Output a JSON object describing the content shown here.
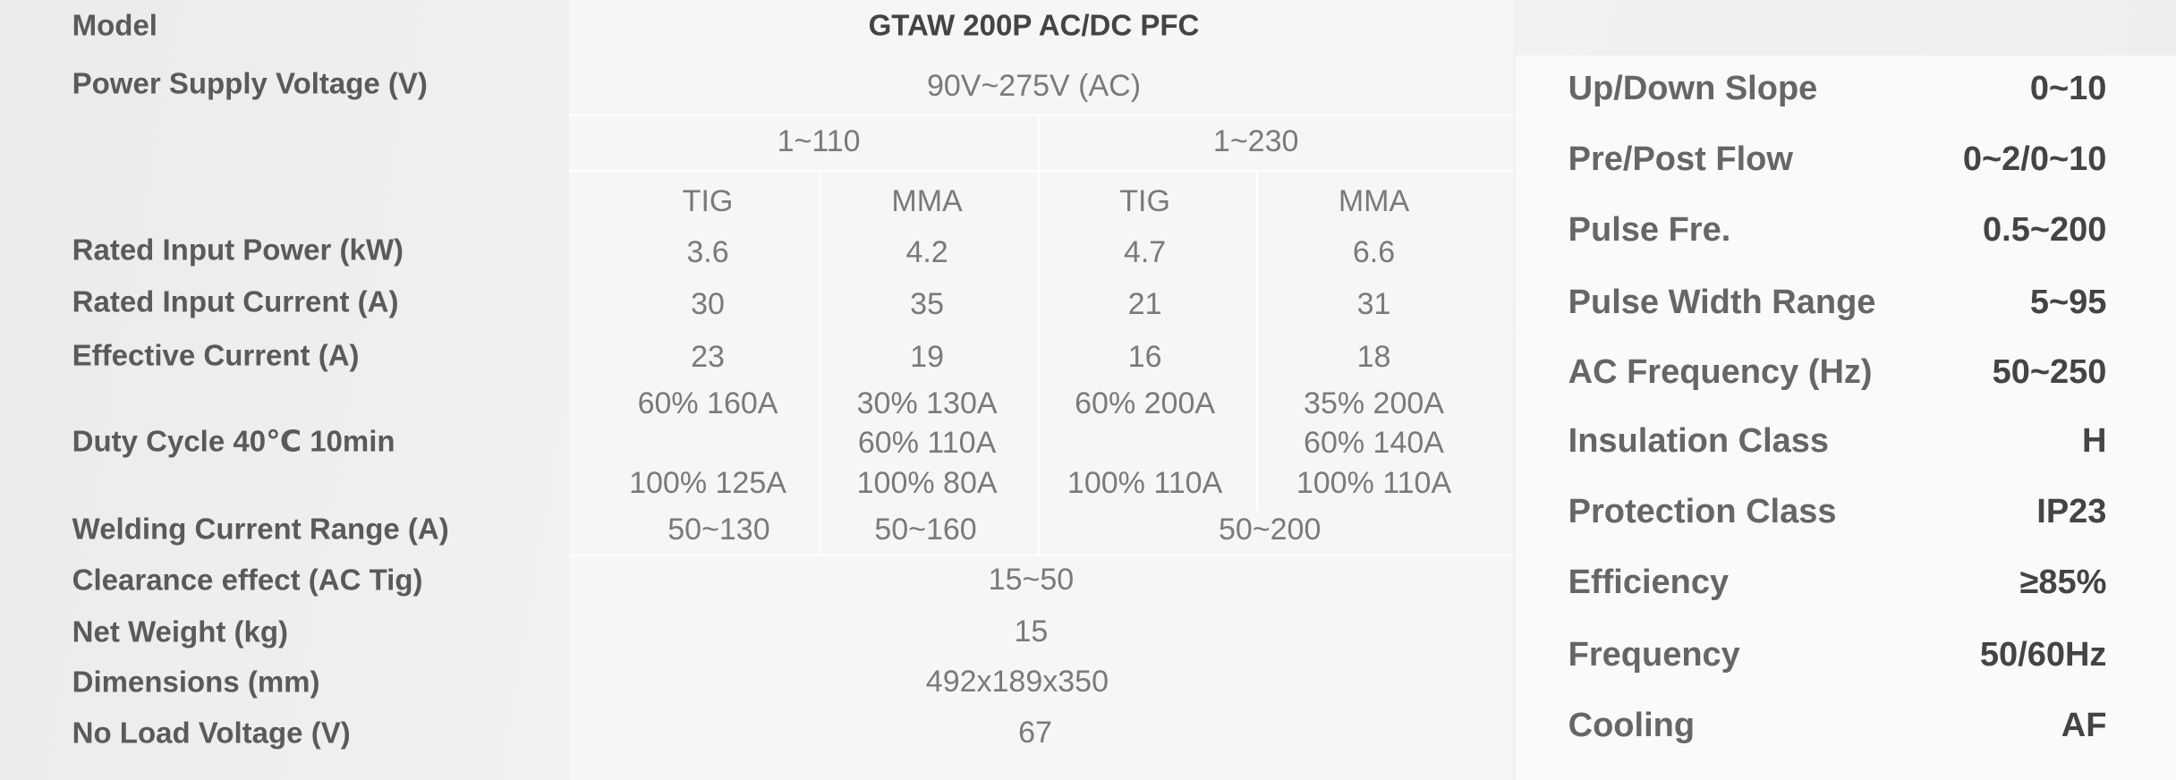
{
  "model": {
    "label": "Model",
    "value": "GTAW 200P AC/DC PFC"
  },
  "spec_table": {
    "row_labels": [
      "Power Supply Voltage (V)",
      "Rated Input Power (kW)",
      "Rated Input Current (A)",
      "Effective Current (A)",
      "Duty Cycle 40℃ 10min",
      "Welding Current Range (A)",
      "Clearance effect (AC Tig)",
      "Net Weight (kg)",
      "Dimensions (mm)",
      "No Load Voltage (V)"
    ],
    "supply_voltage": "90V~275V (AC)",
    "phases": [
      "1~110",
      "1~230"
    ],
    "modes": [
      "TIG",
      "MMA",
      "TIG",
      "MMA"
    ],
    "rated_input_power": [
      "3.6",
      "4.2",
      "4.7",
      "6.6"
    ],
    "rated_input_current": [
      "30",
      "35",
      "21",
      "31"
    ],
    "effective_current": [
      "23",
      "19",
      "16",
      "18"
    ],
    "duty_cycle": [
      [
        "60% 160A",
        "100% 125A"
      ],
      [
        "30% 130A",
        "60% 110A",
        "100% 80A"
      ],
      [
        "60% 200A",
        "100% 110A"
      ],
      [
        "35% 200A",
        "60% 140A",
        "100% 110A"
      ]
    ],
    "welding_current_range": [
      "50~130",
      "50~160",
      "50~200"
    ],
    "clearance_effect": "15~50",
    "net_weight": "15",
    "dimensions": "492x189x350",
    "no_load_voltage": "67"
  },
  "right_table": {
    "rows": [
      [
        "Up/Down Slope",
        "0~10"
      ],
      [
        "Pre/Post Flow",
        "0~2/0~10"
      ],
      [
        "Pulse Fre.",
        "0.5~200"
      ],
      [
        "Pulse Width Range",
        "5~95"
      ],
      [
        "AC Frequency (Hz)",
        "50~250"
      ],
      [
        "Insulation Class",
        "H"
      ],
      [
        "Protection Class",
        "IP23"
      ],
      [
        "Efficiency",
        "≥85%"
      ],
      [
        "Frequency",
        "50/60Hz"
      ],
      [
        "Cooling",
        "AF"
      ]
    ]
  }
}
